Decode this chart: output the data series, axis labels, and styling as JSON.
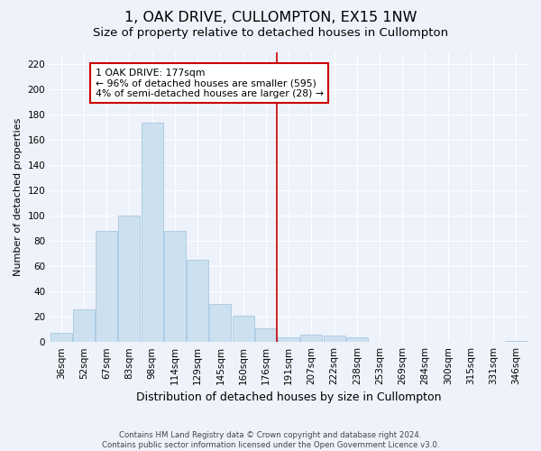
{
  "title": "1, OAK DRIVE, CULLOMPTON, EX15 1NW",
  "subtitle": "Size of property relative to detached houses in Cullompton",
  "xlabel": "Distribution of detached houses by size in Cullompton",
  "ylabel": "Number of detached properties",
  "footer_line1": "Contains HM Land Registry data © Crown copyright and database right 2024.",
  "footer_line2": "Contains public sector information licensed under the Open Government Licence v3.0.",
  "categories": [
    "36sqm",
    "52sqm",
    "67sqm",
    "83sqm",
    "98sqm",
    "114sqm",
    "129sqm",
    "145sqm",
    "160sqm",
    "176sqm",
    "191sqm",
    "207sqm",
    "222sqm",
    "238sqm",
    "253sqm",
    "269sqm",
    "284sqm",
    "300sqm",
    "315sqm",
    "331sqm",
    "346sqm"
  ],
  "values": [
    7,
    26,
    88,
    100,
    174,
    88,
    65,
    30,
    21,
    11,
    4,
    6,
    5,
    4,
    0,
    0,
    0,
    0,
    0,
    0,
    1
  ],
  "bar_color": "#cce0f0",
  "bar_edge_color": "#a8c8e0",
  "vline_x": 9.5,
  "vline_color": "#cc0000",
  "annotation_text": "1 OAK DRIVE: 177sqm\n← 96% of detached houses are smaller (595)\n4% of semi-detached houses are larger (28) →",
  "annotation_box_color": "#ffffff",
  "annotation_box_edge_color": "#cc0000",
  "ylim": [
    0,
    230
  ],
  "yticks": [
    0,
    20,
    40,
    60,
    80,
    100,
    120,
    140,
    160,
    180,
    200,
    220
  ],
  "background_color": "#eef2fa",
  "plot_background_color": "#eef2fa",
  "title_fontsize": 11.5,
  "subtitle_fontsize": 9.5,
  "xlabel_fontsize": 9,
  "ylabel_fontsize": 8,
  "tick_fontsize": 7.5,
  "annotation_fontsize": 7.8
}
